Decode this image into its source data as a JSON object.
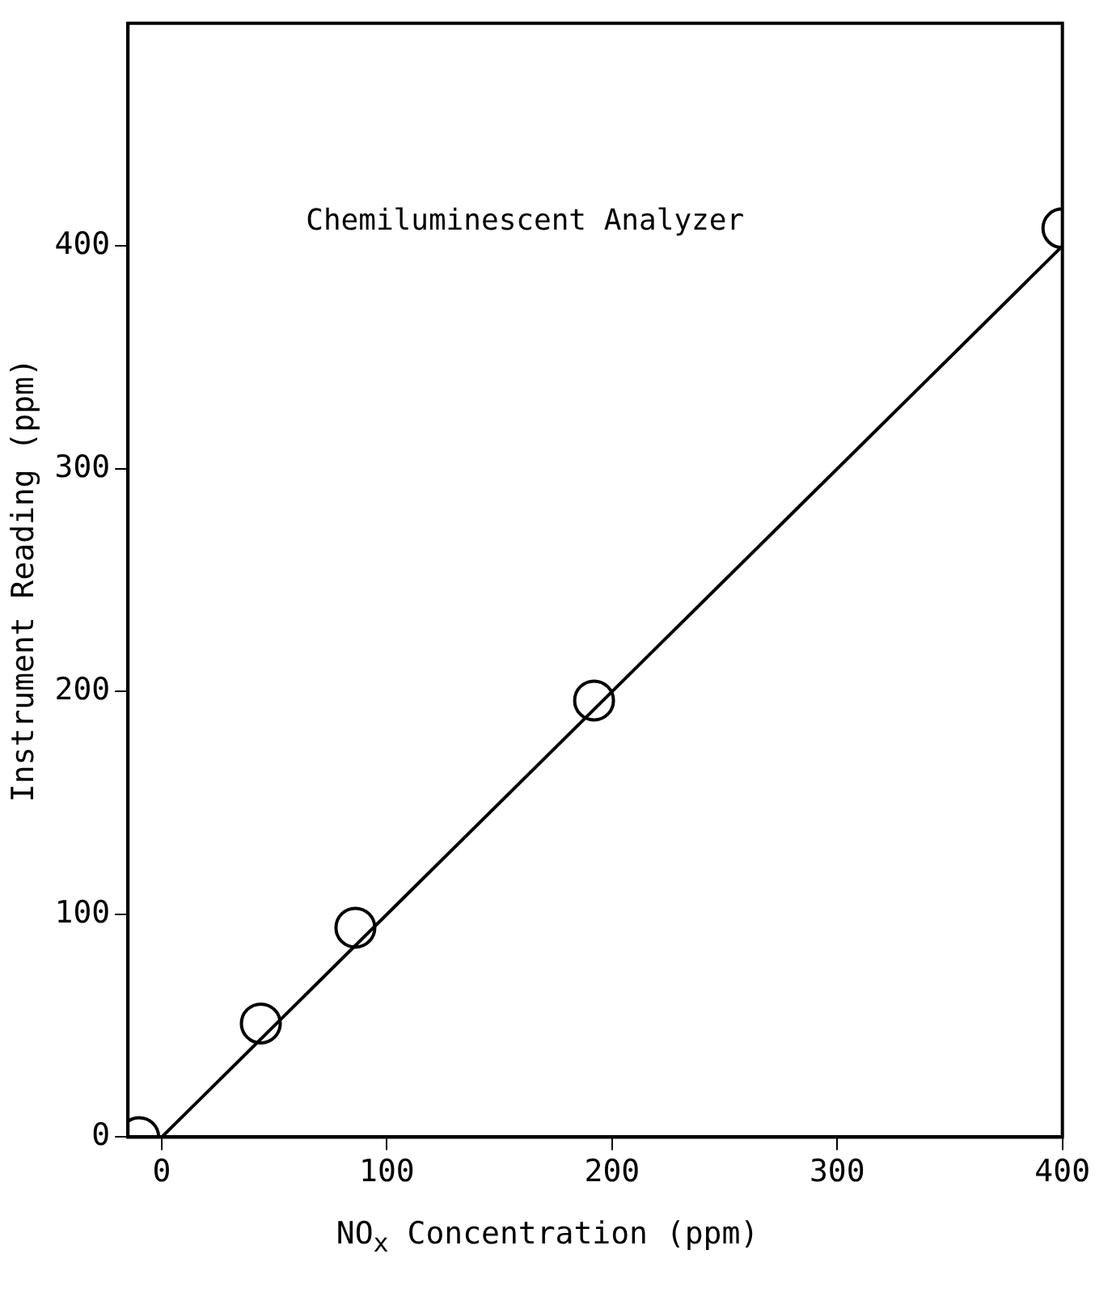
{
  "chart_data": {
    "type": "scatter",
    "xlabel": "NO$_{x}$ Concentration (ppm)",
    "ylabel": "Instrument Reading (ppm)",
    "annotations": [
      "Chemiluminescent Analyzer"
    ],
    "xlim": [
      -15,
      400
    ],
    "xticks": [
      0,
      100,
      200,
      300,
      400
    ],
    "ylim": [
      0,
      500
    ],
    "yticks": [
      0,
      100,
      200,
      300,
      400
    ],
    "grid": false,
    "legend": false,
    "marker": "circle",
    "series": [
      {
        "color": "#000000",
        "x": [
          -10,
          44,
          86,
          192,
          400
        ],
        "values": [
          0,
          51,
          94,
          196,
          408
        ]
      },
      {
        "type": "line",
        "color": "#000000",
        "x": [
          0,
          400
        ],
        "values": [
          0,
          400
        ],
        "marker": "none",
        "line_style": "solid"
      }
    ]
  }
}
